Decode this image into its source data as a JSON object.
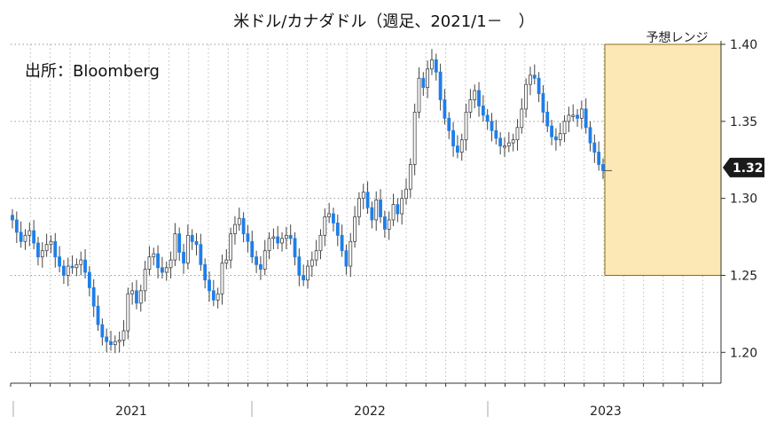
{
  "chart_data": {
    "type": "candlestick",
    "title": "米ドル/カナダドル（週足、2021/1－　）",
    "source": "出所：Bloomberg",
    "ylim": [
      1.18,
      1.4
    ],
    "y_ticks": [
      "1.20",
      "1.25",
      "1.30",
      "1.35",
      "1.40"
    ],
    "x_year_labels": [
      "2021",
      "2022",
      "2023"
    ],
    "current_value_label": "1.32",
    "forecast_range": {
      "label": "予想レンジ",
      "low": 1.25,
      "high": 1.4
    },
    "colors": {
      "up": "#ffffff",
      "down": "#1f7ee8",
      "wick": "#444444",
      "band": "#fce8b4",
      "band_border": "#8a6d1a",
      "badge": "#1a1a1a"
    },
    "grid": true,
    "weekly_close": [
      1.286,
      1.278,
      1.272,
      1.276,
      1.279,
      1.271,
      1.262,
      1.266,
      1.27,
      1.272,
      1.262,
      1.256,
      1.25,
      1.256,
      1.255,
      1.257,
      1.26,
      1.252,
      1.242,
      1.23,
      1.218,
      1.21,
      1.207,
      1.205,
      1.207,
      1.208,
      1.214,
      1.238,
      1.24,
      1.232,
      1.24,
      1.254,
      1.262,
      1.264,
      1.255,
      1.252,
      1.255,
      1.26,
      1.277,
      1.265,
      1.258,
      1.276,
      1.272,
      1.27,
      1.257,
      1.247,
      1.24,
      1.234,
      1.238,
      1.258,
      1.26,
      1.277,
      1.283,
      1.287,
      1.277,
      1.272,
      1.262,
      1.257,
      1.254,
      1.266,
      1.274,
      1.275,
      1.271,
      1.274,
      1.276,
      1.274,
      1.262,
      1.25,
      1.247,
      1.256,
      1.26,
      1.266,
      1.276,
      1.288,
      1.29,
      1.284,
      1.276,
      1.266,
      1.256,
      1.272,
      1.288,
      1.3,
      1.304,
      1.294,
      1.286,
      1.299,
      1.288,
      1.28,
      1.286,
      1.296,
      1.29,
      1.3,
      1.306,
      1.322,
      1.356,
      1.378,
      1.372,
      1.384,
      1.39,
      1.382,
      1.364,
      1.352,
      1.344,
      1.334,
      1.33,
      1.338,
      1.356,
      1.364,
      1.37,
      1.36,
      1.354,
      1.35,
      1.344,
      1.339,
      1.334,
      1.334,
      1.336,
      1.338,
      1.346,
      1.358,
      1.374,
      1.38,
      1.378,
      1.368,
      1.356,
      1.347,
      1.34,
      1.338,
      1.342,
      1.35,
      1.354,
      1.354,
      1.352,
      1.358,
      1.346,
      1.336,
      1.33,
      1.322,
      1.318
    ]
  }
}
